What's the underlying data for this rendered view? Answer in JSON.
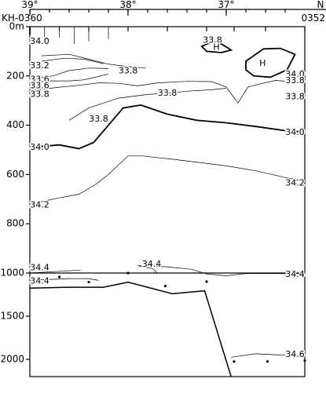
{
  "chart_data": {
    "type": "contour",
    "title": "",
    "start_station": "KH-0360",
    "end_station": "0352",
    "x_axis": {
      "ticks": [
        {
          "value": 39,
          "label": "39°"
        },
        {
          "value": 38,
          "label": "38°"
        },
        {
          "value": 37,
          "label": "37°"
        }
      ],
      "unit_label": "N",
      "range_deg_N": [
        39.0,
        36.2
      ]
    },
    "y_axis_upper": {
      "range_m": [
        0,
        1000
      ],
      "ticks": [
        {
          "value": 0,
          "label": "0m"
        },
        {
          "value": 200,
          "label": "200"
        },
        {
          "value": 400,
          "label": "400"
        },
        {
          "value": 600,
          "label": "600"
        },
        {
          "value": 800,
          "label": "800"
        },
        {
          "value": 1000,
          "label": "1000"
        }
      ]
    },
    "y_axis_lower": {
      "range_m": [
        1000,
        2200
      ],
      "ticks": [
        {
          "value": 1500,
          "label": "1500"
        },
        {
          "value": 2000,
          "label": "2000"
        }
      ]
    },
    "contour_labels": [
      {
        "text": "34.0",
        "lat": 38.9,
        "depth": 60
      },
      {
        "text": "33.2",
        "lat": 38.9,
        "depth": 160
      },
      {
        "text": "33.6",
        "lat": 38.9,
        "depth": 215
      },
      {
        "text": "33.6",
        "lat": 38.9,
        "depth": 240
      },
      {
        "text": "33.8",
        "lat": 38.9,
        "depth": 275
      },
      {
        "text": "33.8",
        "lat": 37.14,
        "depth": 55
      },
      {
        "text": "H",
        "lat": 37.1,
        "depth": 85
      },
      {
        "text": "H",
        "lat": 36.63,
        "depth": 150
      },
      {
        "text": "33.8",
        "lat": 38.0,
        "depth": 180
      },
      {
        "text": "33.8",
        "lat": 37.6,
        "depth": 270
      },
      {
        "text": "34.0",
        "lat": 36.3,
        "depth": 195
      },
      {
        "text": "33.8",
        "lat": 36.3,
        "depth": 220
      },
      {
        "text": "33.8",
        "lat": 36.3,
        "depth": 285
      },
      {
        "text": "33.8",
        "lat": 38.3,
        "depth": 375
      },
      {
        "text": "34.0",
        "lat": 38.9,
        "depth": 490
      },
      {
        "text": "34.0",
        "lat": 36.3,
        "depth": 430
      },
      {
        "text": "34.2",
        "lat": 38.9,
        "depth": 725
      },
      {
        "text": "34.2",
        "lat": 36.3,
        "depth": 635
      },
      {
        "text": "34.4",
        "lat": 38.9,
        "depth": 980
      },
      {
        "text": "34.4",
        "lat": 37.76,
        "depth": 965
      },
      {
        "text": "34.4",
        "lat": 36.3,
        "depth": 1020
      },
      {
        "text": "34.4",
        "lat": 38.9,
        "depth": 1095
      },
      {
        "text": "34.6",
        "lat": 36.3,
        "depth": 1945
      }
    ],
    "contours": [
      {
        "level": 34.0,
        "points": [
          [
            39.0,
            490
          ],
          [
            38.7,
            480
          ],
          [
            38.5,
            495
          ],
          [
            38.35,
            470
          ],
          [
            38.2,
            400
          ],
          [
            38.05,
            330
          ],
          [
            37.87,
            318
          ],
          [
            37.6,
            355
          ],
          [
            37.3,
            380
          ],
          [
            37.0,
            390
          ],
          [
            36.7,
            405
          ],
          [
            36.4,
            422
          ],
          [
            36.2,
            428
          ]
        ]
      },
      {
        "level": 34.2,
        "points": [
          [
            39.0,
            720
          ],
          [
            38.7,
            695
          ],
          [
            38.5,
            680
          ],
          [
            38.33,
            640
          ],
          [
            38.2,
            600
          ],
          [
            38.0,
            525
          ],
          [
            37.85,
            525
          ],
          [
            37.5,
            540
          ],
          [
            37.0,
            565
          ],
          [
            36.7,
            585
          ],
          [
            36.4,
            612
          ],
          [
            36.2,
            628
          ]
        ]
      },
      {
        "level": 34.4,
        "points": [
          [
            39.0,
            1000
          ],
          [
            38.7,
            993
          ],
          [
            38.48,
            988
          ]
        ]
      },
      {
        "level": 34.4,
        "points": [
          [
            37.7,
            1001
          ],
          [
            37.75,
            982
          ],
          [
            37.9,
            970
          ],
          [
            37.6,
            975
          ],
          [
            37.35,
            985
          ],
          [
            37.2,
            1010
          ],
          [
            37.0,
            1032
          ],
          [
            36.8,
            1005
          ],
          [
            36.5,
            1005
          ],
          [
            36.2,
            1010
          ]
        ]
      },
      {
        "level": 34.4,
        "points": [
          [
            39.0,
            1085
          ],
          [
            38.6,
            1065
          ],
          [
            38.4,
            1065
          ],
          [
            38.3,
            1085
          ]
        ]
      },
      {
        "level": 34.6,
        "points": [
          [
            36.95,
            1975
          ],
          [
            36.7,
            1935
          ],
          [
            36.45,
            1950
          ],
          [
            36.2,
            1955
          ]
        ]
      },
      {
        "level": 33.8,
        "points": [
          [
            39.0,
            260
          ],
          [
            38.75,
            248
          ],
          [
            38.5,
            238
          ],
          [
            38.3,
            228
          ],
          [
            38.1,
            230
          ],
          [
            37.9,
            240
          ],
          [
            37.7,
            228
          ],
          [
            37.4,
            222
          ],
          [
            37.15,
            223
          ],
          [
            37.0,
            245
          ],
          [
            36.88,
            310
          ],
          [
            36.78,
            245
          ],
          [
            36.65,
            232
          ],
          [
            36.5,
            218
          ],
          [
            36.35,
            223
          ],
          [
            36.2,
            232
          ]
        ]
      },
      {
        "level": 33.8,
        "points": [
          [
            38.6,
            380
          ],
          [
            38.4,
            330
          ],
          [
            38.1,
            290
          ],
          [
            37.8,
            275
          ],
          [
            37.6,
            270
          ],
          [
            37.4,
            262
          ],
          [
            37.15,
            256
          ],
          [
            37.0,
            250
          ]
        ]
      },
      {
        "level": 33.8,
        "points": [
          [
            38.88,
            118
          ],
          [
            38.6,
            112
          ],
          [
            38.4,
            132
          ],
          [
            38.2,
            152
          ],
          [
            38.0,
            162
          ],
          [
            37.82,
            168
          ]
        ]
      },
      {
        "level": 33.6,
        "points": [
          [
            39.0,
            215
          ],
          [
            38.75,
            198
          ],
          [
            38.6,
            178
          ],
          [
            38.4,
            168
          ],
          [
            38.2,
            170
          ]
        ]
      },
      {
        "level": 33.2,
        "points": [
          [
            38.88,
            140
          ],
          [
            38.65,
            128
          ],
          [
            38.45,
            132
          ],
          [
            38.25,
            150
          ]
        ]
      },
      {
        "level": 34.0,
        "points": [
          [
            39.0,
            32
          ],
          [
            39.0,
            0
          ]
        ]
      },
      {
        "level": 33.8,
        "points": [
          [
            39.0,
            220
          ],
          [
            38.6,
            220
          ],
          [
            38.45,
            216
          ],
          [
            38.3,
            202
          ],
          [
            38.2,
            192
          ]
        ]
      }
    ],
    "high_cores": [
      {
        "label": "H",
        "points": [
          [
            36.95,
            95
          ],
          [
            37.05,
            70
          ],
          [
            37.15,
            62
          ],
          [
            37.25,
            80
          ],
          [
            37.2,
            100
          ],
          [
            37.05,
            105
          ],
          [
            36.95,
            95
          ]
        ]
      },
      {
        "label": "H",
        "points": [
          [
            36.8,
            140
          ],
          [
            36.62,
            90
          ],
          [
            36.45,
            88
          ],
          [
            36.3,
            112
          ],
          [
            36.38,
            175
          ],
          [
            36.55,
            205
          ],
          [
            36.72,
            200
          ],
          [
            36.8,
            175
          ],
          [
            36.8,
            140
          ]
        ]
      }
    ],
    "bottom_profile": {
      "points": [
        [
          39.0,
          1175
        ],
        [
          38.6,
          1165
        ],
        [
          38.25,
          1165
        ],
        [
          38.0,
          1105
        ],
        [
          37.55,
          1240
        ],
        [
          37.22,
          1205
        ],
        [
          36.95,
          2200
        ]
      ]
    },
    "sample_points": [
      [
        38.98,
        1080
      ],
      [
        38.7,
        1045
      ],
      [
        38.4,
        1105
      ],
      [
        38.0,
        1000
      ],
      [
        37.62,
        1150
      ],
      [
        37.2,
        1100
      ],
      [
        36.92,
        2025
      ],
      [
        36.58,
        2025
      ],
      [
        36.2,
        2015
      ]
    ]
  }
}
